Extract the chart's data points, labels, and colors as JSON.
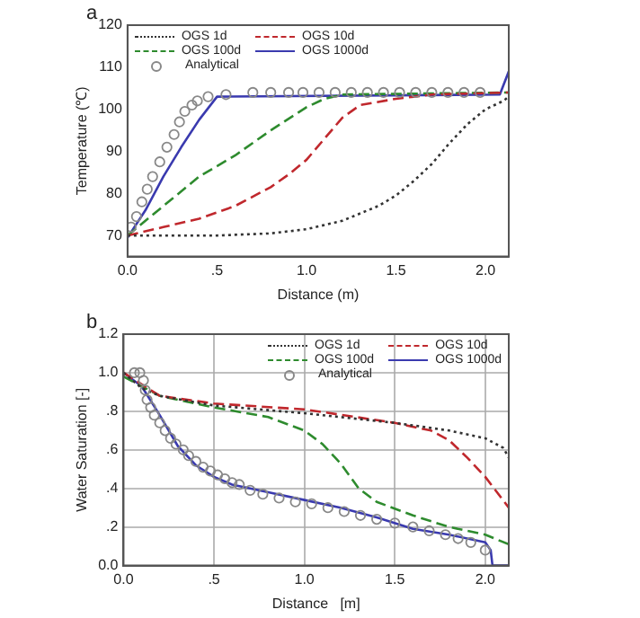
{
  "chart_data": [
    {
      "type": "line",
      "annotations": [
        "a"
      ],
      "xlabel": "Distance (m)",
      "ylabel": "Temperature (℃)",
      "xlim": [
        0,
        2.13
      ],
      "xticks": [
        {
          "value": 0,
          "label": "0.0"
        },
        {
          "value": 0.5,
          "label": ".5"
        },
        {
          "value": 1,
          "label": "1.0"
        },
        {
          "value": 1.5,
          "label": "1.5"
        },
        {
          "value": 2,
          "label": "2.0"
        }
      ],
      "ylim": [
        65,
        120
      ],
      "yticks": [
        70,
        80,
        90,
        100,
        110,
        120
      ],
      "grid": false,
      "legend": "top left",
      "series": [
        {
          "name": "OGS 1d",
          "color": "#333333",
          "line_style": "dotted",
          "marker": "none",
          "x": [
            0,
            0.5,
            0.8,
            1.0,
            1.2,
            1.4,
            1.5,
            1.6,
            1.7,
            1.8,
            1.9,
            2.0,
            2.1,
            2.13
          ],
          "values": [
            70,
            70,
            70.5,
            71.5,
            73.5,
            77,
            79.5,
            83,
            87,
            92,
            96.5,
            100,
            102,
            103
          ]
        },
        {
          "name": "OGS 10d",
          "color": "#c0282d",
          "line_style": "dashed",
          "marker": "none",
          "x": [
            0,
            0.2,
            0.4,
            0.6,
            0.8,
            0.9,
            1.0,
            1.1,
            1.2,
            1.3,
            1.5,
            1.6,
            1.7,
            2.13
          ],
          "values": [
            70,
            72,
            74,
            77,
            81.5,
            84.5,
            88,
            93,
            98,
            101,
            102.5,
            103,
            103.5,
            104
          ]
        },
        {
          "name": "OGS 100d",
          "color": "#2e8b2e",
          "line_style": "dashed",
          "marker": "none",
          "x": [
            0,
            0.2,
            0.4,
            0.6,
            0.8,
            1.0,
            1.1,
            1.2,
            2.13
          ],
          "values": [
            70,
            77,
            84,
            89,
            95,
            100.5,
            102.5,
            103.5,
            104
          ]
        },
        {
          "name": "OGS 1000d",
          "color": "#3a3aaf",
          "line_style": "solid",
          "marker": "none",
          "x": [
            0,
            0.1,
            0.2,
            0.3,
            0.4,
            0.5,
            2.08,
            2.13
          ],
          "values": [
            69.5,
            76,
            84,
            91,
            97.5,
            103,
            103.5,
            109
          ]
        },
        {
          "name": "Analytical",
          "type": "scatter",
          "color": "#888888",
          "marker": "circle",
          "x": [
            0.02,
            0.05,
            0.08,
            0.11,
            0.14,
            0.18,
            0.22,
            0.26,
            0.29,
            0.32,
            0.36,
            0.39,
            0.45,
            0.55,
            0.7,
            0.8,
            0.9,
            0.98,
            1.07,
            1.16,
            1.25,
            1.34,
            1.43,
            1.52,
            1.61,
            1.7,
            1.79,
            1.88,
            1.97
          ],
          "values": [
            72,
            74.5,
            78,
            81,
            84,
            87.5,
            91,
            94,
            97,
            99.5,
            101,
            102,
            103,
            103.5,
            104,
            104,
            104,
            104,
            104,
            104,
            104,
            104,
            104,
            104,
            104,
            104,
            104,
            104,
            104
          ]
        }
      ]
    },
    {
      "type": "line",
      "annotations": [
        "b"
      ],
      "xlabel": "Distance   [m]",
      "ylabel": "Water Saturation [-]",
      "xlim": [
        0,
        2.13
      ],
      "xticks": [
        {
          "value": 0,
          "label": "0.0"
        },
        {
          "value": 0.5,
          "label": ".5"
        },
        {
          "value": 1,
          "label": "1.0"
        },
        {
          "value": 1.5,
          "label": "1.5"
        },
        {
          "value": 2,
          "label": "2.0"
        }
      ],
      "ylim": [
        0,
        1.2
      ],
      "yticks": [
        {
          "value": 0,
          "label": "0.0"
        },
        {
          "value": 0.2,
          "label": ".2"
        },
        {
          "value": 0.4,
          "label": ".4"
        },
        {
          "value": 0.6,
          "label": ".6"
        },
        {
          "value": 0.8,
          "label": ".8"
        },
        {
          "value": 1,
          "label": "1.0"
        },
        {
          "value": 1.2,
          "label": "1.2"
        }
      ],
      "grid": true,
      "legend": "top right",
      "series": [
        {
          "name": "OGS 1d",
          "color": "#333333",
          "line_style": "dotted",
          "marker": "none",
          "x": [
            0,
            0.1,
            0.2,
            0.5,
            1.0,
            1.5,
            1.8,
            2.0,
            2.1,
            2.13
          ],
          "values": [
            1.0,
            0.92,
            0.88,
            0.83,
            0.79,
            0.74,
            0.7,
            0.66,
            0.61,
            0.56
          ]
        },
        {
          "name": "OGS 10d",
          "color": "#c0282d",
          "line_style": "dashed",
          "marker": "none",
          "x": [
            0,
            0.2,
            0.5,
            1.0,
            1.5,
            1.7,
            1.8,
            1.9,
            2.0,
            2.13
          ],
          "values": [
            1.0,
            0.88,
            0.84,
            0.81,
            0.74,
            0.7,
            0.65,
            0.56,
            0.46,
            0.3
          ]
        },
        {
          "name": "OGS 100d",
          "color": "#2e8b2e",
          "line_style": "dashed",
          "marker": "none",
          "x": [
            0,
            0.2,
            0.5,
            0.8,
            1.0,
            1.1,
            1.2,
            1.3,
            1.4,
            1.6,
            1.8,
            2.0,
            2.13
          ],
          "values": [
            0.98,
            0.88,
            0.82,
            0.77,
            0.7,
            0.63,
            0.53,
            0.4,
            0.33,
            0.26,
            0.2,
            0.16,
            0.11
          ]
        },
        {
          "name": "OGS 1000d",
          "color": "#3a3aaf",
          "line_style": "solid",
          "marker": "none",
          "x": [
            0,
            0.1,
            0.2,
            0.3,
            0.4,
            0.5,
            0.6,
            0.8,
            1.0,
            1.2,
            1.4,
            1.6,
            1.8,
            2.0,
            2.03,
            2.04,
            2.13
          ],
          "values": [
            1.0,
            0.93,
            0.78,
            0.62,
            0.52,
            0.46,
            0.42,
            0.38,
            0.34,
            0.3,
            0.25,
            0.19,
            0.16,
            0.12,
            0.08,
            0,
            0
          ]
        },
        {
          "name": "Analytical",
          "type": "scatter",
          "color": "#888888",
          "marker": "circle",
          "x": [
            0.06,
            0.09,
            0.11,
            0.12,
            0.13,
            0.15,
            0.17,
            0.2,
            0.23,
            0.26,
            0.29,
            0.33,
            0.36,
            0.4,
            0.44,
            0.48,
            0.52,
            0.56,
            0.6,
            0.64,
            0.7,
            0.77,
            0.86,
            0.95,
            1.04,
            1.13,
            1.22,
            1.31,
            1.4,
            1.5,
            1.6,
            1.69,
            1.78,
            1.85,
            1.92,
            2.0
          ],
          "values": [
            1.0,
            1.0,
            0.96,
            0.91,
            0.86,
            0.82,
            0.78,
            0.74,
            0.7,
            0.66,
            0.63,
            0.6,
            0.57,
            0.54,
            0.51,
            0.49,
            0.47,
            0.45,
            0.43,
            0.42,
            0.39,
            0.37,
            0.35,
            0.33,
            0.32,
            0.3,
            0.28,
            0.26,
            0.24,
            0.22,
            0.2,
            0.18,
            0.16,
            0.14,
            0.12,
            0.08
          ]
        }
      ]
    }
  ]
}
